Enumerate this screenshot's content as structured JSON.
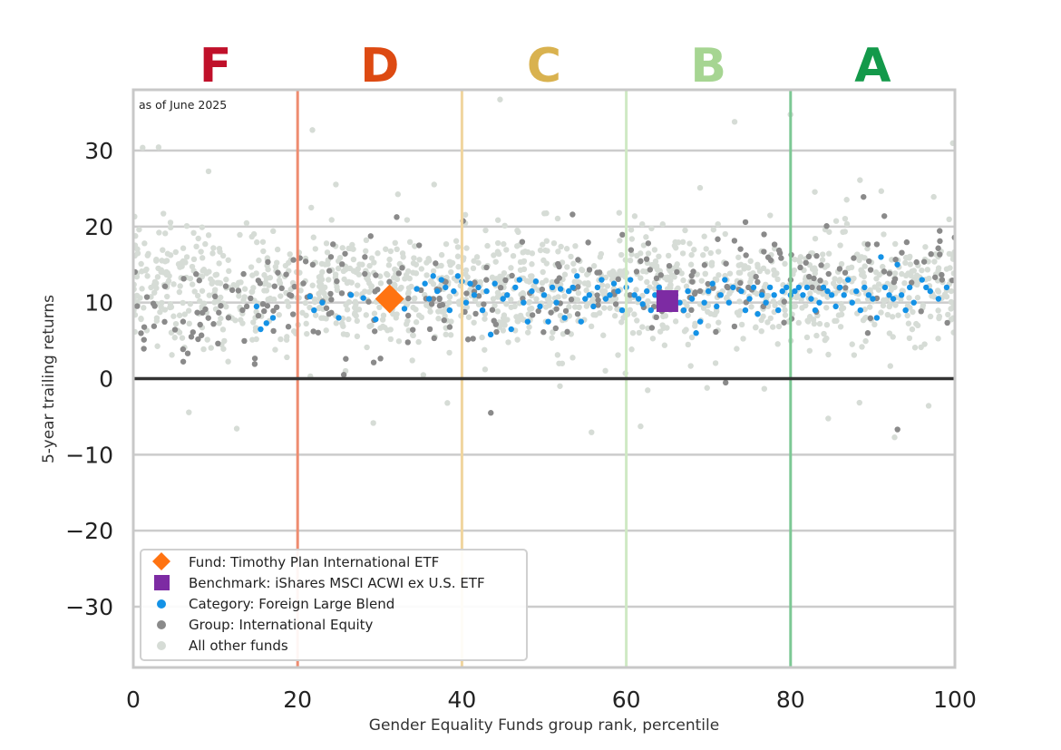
{
  "chart_data": {
    "type": "scatter",
    "title": "",
    "annotation": "as of June 2025",
    "xlabel": "Gender Equality Funds group rank, percentile",
    "ylabel": "5-year trailing returns",
    "xlim": [
      0,
      100
    ],
    "ylim": [
      -38,
      38
    ],
    "x_ticks": [
      0,
      20,
      40,
      60,
      80,
      100
    ],
    "y_ticks": [
      -30,
      -20,
      -10,
      0,
      10,
      20,
      30
    ],
    "grid": "horizontal",
    "zero_line": 0,
    "legend_position": "lower-left",
    "grade_bands": [
      {
        "label": "F",
        "center": 10,
        "color": "#c0102a"
      },
      {
        "label": "D",
        "center": 30,
        "color": "#dd4a12"
      },
      {
        "label": "C",
        "center": 50,
        "color": "#d9b24f"
      },
      {
        "label": "B",
        "center": 70,
        "color": "#a6d592"
      },
      {
        "label": "A",
        "center": 90,
        "color": "#13994a"
      }
    ],
    "band_lines": [
      {
        "x": 20,
        "color": "#ee8c70"
      },
      {
        "x": 40,
        "color": "#f0d59e"
      },
      {
        "x": 60,
        "color": "#cfe9c4"
      },
      {
        "x": 80,
        "color": "#7cc894"
      },
      {
        "x": 100,
        "color": "#8fd3a6"
      }
    ],
    "series": [
      {
        "name": "Fund: Timothy Plan International ETF",
        "marker": "diamond",
        "color": "#ff7311",
        "points": [
          [
            31.2,
            10.5
          ]
        ]
      },
      {
        "name": "Benchmark: iShares MSCI ACWI ex U.S. ETF",
        "marker": "square",
        "color": "#7d2ba3",
        "points": [
          [
            65,
            10.2
          ]
        ]
      },
      {
        "name": "Category: Foreign Large Blend",
        "marker": "circle",
        "color": "#1492e6",
        "points": [
          [
            15,
            9.5
          ],
          [
            15.5,
            6.5
          ],
          [
            16.2,
            7.3
          ],
          [
            17,
            8.0
          ],
          [
            21.5,
            10.8
          ],
          [
            22,
            9.0
          ],
          [
            23,
            10.0
          ],
          [
            25,
            8.0
          ],
          [
            26.5,
            11.0
          ],
          [
            28,
            10.6
          ],
          [
            29.5,
            7.8
          ],
          [
            33,
            9.2
          ],
          [
            34.5,
            11.8
          ],
          [
            35.5,
            12.5
          ],
          [
            36,
            10.5
          ],
          [
            36.5,
            13.5
          ],
          [
            37,
            11.5
          ],
          [
            37.5,
            13.0
          ],
          [
            38,
            12.0
          ],
          [
            38.5,
            9.0
          ],
          [
            39,
            11.5
          ],
          [
            39.5,
            13.5
          ],
          [
            40,
            12.8
          ],
          [
            40.5,
            10.0
          ],
          [
            41,
            12.5
          ],
          [
            41.5,
            11.0
          ],
          [
            42,
            12.0
          ],
          [
            42.5,
            9.0
          ],
          [
            43,
            11.5
          ],
          [
            43.5,
            5.8
          ],
          [
            44,
            12.5
          ],
          [
            45,
            10.5
          ],
          [
            45.5,
            11.0
          ],
          [
            46,
            6.5
          ],
          [
            46.5,
            12.0
          ],
          [
            47,
            13.0
          ],
          [
            47.5,
            10.0
          ],
          [
            48,
            7.5
          ],
          [
            48.5,
            11.5
          ],
          [
            49,
            12.8
          ],
          [
            49.5,
            9.5
          ],
          [
            50,
            11.0
          ],
          [
            50.5,
            7.5
          ],
          [
            51,
            12.0
          ],
          [
            51.5,
            10.0
          ],
          [
            52,
            11.8
          ],
          [
            52.5,
            8.0
          ],
          [
            53,
            11.5
          ],
          [
            53.5,
            12.0
          ],
          [
            54,
            13.5
          ],
          [
            54.5,
            7.5
          ],
          [
            55,
            10.5
          ],
          [
            55.5,
            11.0
          ],
          [
            56,
            9.5
          ],
          [
            56.5,
            12.0
          ],
          [
            57,
            13.0
          ],
          [
            57.5,
            10.5
          ],
          [
            58,
            11.0
          ],
          [
            58.5,
            12.5
          ],
          [
            59,
            11.5
          ],
          [
            59.5,
            9.0
          ],
          [
            60,
            12.0
          ],
          [
            60.5,
            13.0
          ],
          [
            61,
            11.0
          ],
          [
            61.5,
            10.5
          ],
          [
            62,
            9.8
          ],
          [
            62.5,
            11.5
          ],
          [
            63,
            9.0
          ],
          [
            63.5,
            11.0
          ],
          [
            64,
            12.0
          ],
          [
            66,
            11.0
          ],
          [
            66.5,
            10.0
          ],
          [
            67,
            9.0
          ],
          [
            67.5,
            11.5
          ],
          [
            68,
            10.5
          ],
          [
            68.5,
            6.0
          ],
          [
            69,
            7.5
          ],
          [
            69.5,
            10.0
          ],
          [
            70,
            11.5
          ],
          [
            70.5,
            12.5
          ],
          [
            71,
            9.5
          ],
          [
            71.5,
            11.0
          ],
          [
            72,
            13.0
          ],
          [
            72.5,
            10.0
          ],
          [
            73,
            12.0
          ],
          [
            74,
            11.5
          ],
          [
            74.5,
            9.0
          ],
          [
            75,
            10.5
          ],
          [
            75.5,
            12.0
          ],
          [
            76,
            8.5
          ],
          [
            76.5,
            11.0
          ],
          [
            77,
            10.0
          ],
          [
            77.5,
            12.0
          ],
          [
            78,
            11.0
          ],
          [
            78.5,
            9.0
          ],
          [
            79,
            11.5
          ],
          [
            79.5,
            12.0
          ],
          [
            80,
            11.0
          ],
          [
            80.5,
            11.5
          ],
          [
            81,
            12.0
          ],
          [
            81.5,
            11.0
          ],
          [
            82,
            12.0
          ],
          [
            82.5,
            10.5
          ],
          [
            83,
            9.0
          ],
          [
            83.5,
            10.0
          ],
          [
            84,
            12.0
          ],
          [
            84.5,
            11.5
          ],
          [
            85,
            11.0
          ],
          [
            85.5,
            9.5
          ],
          [
            86,
            12.0
          ],
          [
            86.5,
            11.0
          ],
          [
            87,
            13.0
          ],
          [
            87.5,
            10.0
          ],
          [
            88,
            11.5
          ],
          [
            88.5,
            9.0
          ],
          [
            89,
            12.0
          ],
          [
            89.5,
            11.0
          ],
          [
            90,
            10.5
          ],
          [
            90.5,
            8.0
          ],
          [
            91,
            16.0
          ],
          [
            91.5,
            12.0
          ],
          [
            92,
            11.0
          ],
          [
            92.5,
            10.5
          ],
          [
            93,
            15.0
          ],
          [
            93.5,
            11.0
          ],
          [
            94,
            9.0
          ],
          [
            94.5,
            12.0
          ],
          [
            95,
            10.0
          ],
          [
            96,
            13.0
          ],
          [
            96.5,
            12.0
          ],
          [
            97,
            11.5
          ],
          [
            98,
            10.5
          ],
          [
            99,
            12.0
          ]
        ]
      },
      {
        "name": "Group: International Equity",
        "marker": "circle",
        "color": "#8a8a8a",
        "count": 300
      },
      {
        "name": "All other funds",
        "marker": "circle",
        "color": "#d6dcd6",
        "count": 1400
      }
    ]
  },
  "legend": {
    "fund": "Fund: Timothy Plan International ETF",
    "benchmark": "Benchmark: iShares MSCI ACWI ex U.S. ETF",
    "category": "Category: Foreign Large Blend",
    "group": "Group: International Equity",
    "other": "All other funds"
  }
}
